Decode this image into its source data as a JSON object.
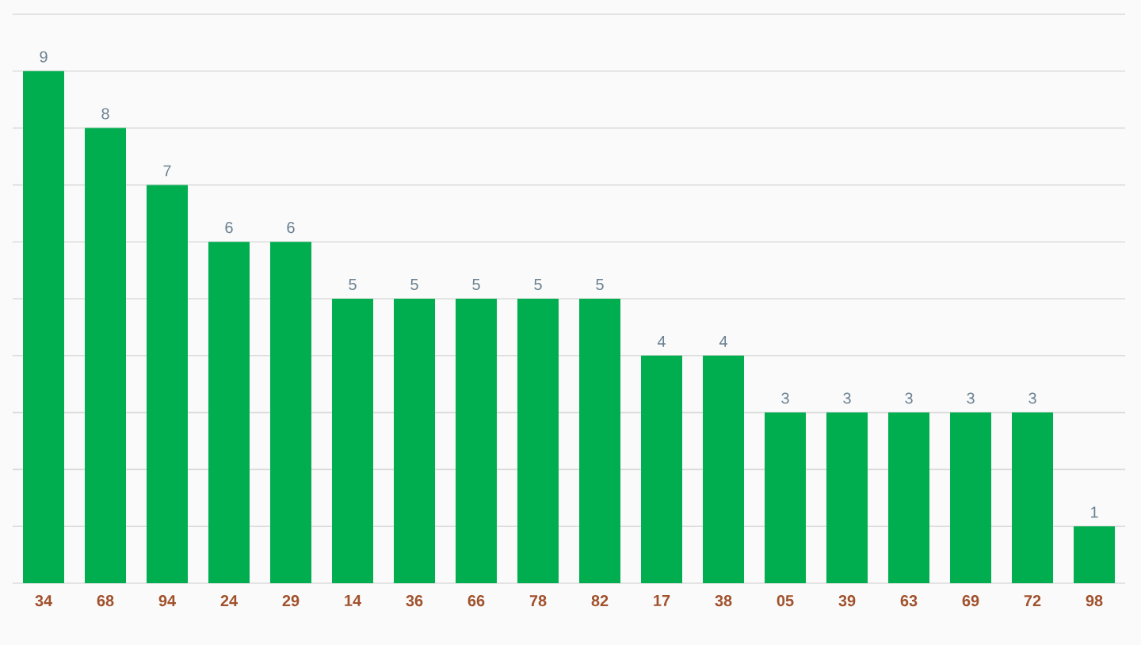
{
  "chart_data": {
    "type": "bar",
    "categories": [
      "34",
      "68",
      "94",
      "24",
      "29",
      "14",
      "36",
      "66",
      "78",
      "82",
      "17",
      "38",
      "05",
      "39",
      "63",
      "69",
      "72",
      "98"
    ],
    "values": [
      9,
      8,
      7,
      6,
      6,
      5,
      5,
      5,
      5,
      5,
      4,
      4,
      3,
      3,
      3,
      3,
      3,
      1
    ],
    "color": "#00ae4f",
    "ylim": [
      0,
      10
    ],
    "yticks": [
      {
        "value": 0,
        "label": null
      },
      {
        "value": 1,
        "label": null
      },
      {
        "value": 2,
        "label": null
      },
      {
        "value": 3,
        "label": null
      },
      {
        "value": 4,
        "label": null
      },
      {
        "value": 5,
        "label": null
      },
      {
        "value": 6,
        "label": null
      },
      {
        "value": 7,
        "label": null
      },
      {
        "value": 8,
        "label": null
      },
      {
        "value": 9,
        "label": null
      },
      {
        "value": 10,
        "label": null
      }
    ],
    "grid": "y",
    "tick_labels": "x",
    "data_labels": true
  }
}
